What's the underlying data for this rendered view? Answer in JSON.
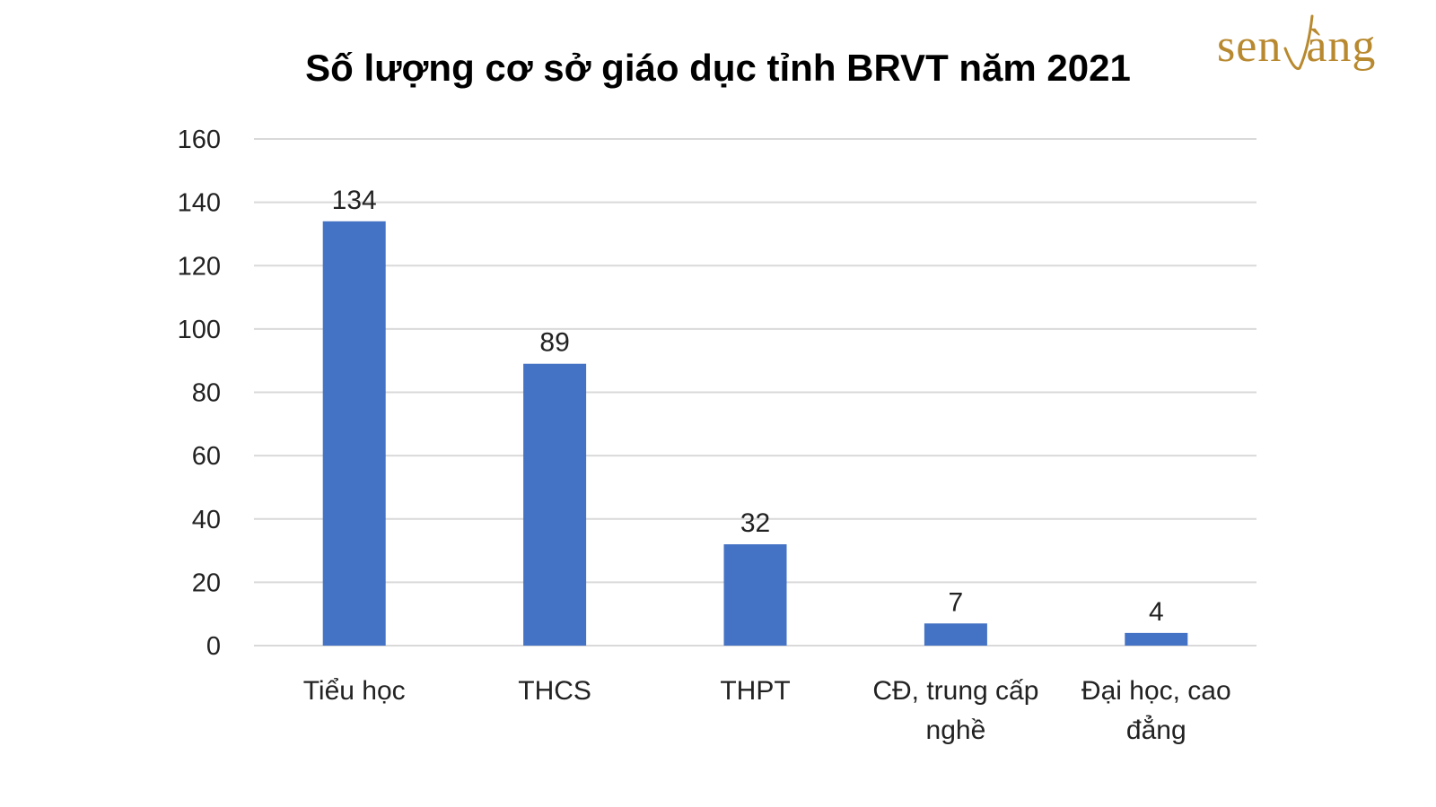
{
  "logo": {
    "text": "senvàng",
    "color": "#b8892f"
  },
  "chart_data": {
    "type": "bar",
    "title": "Số lượng cơ sở giáo dục tỉnh BRVT năm 2021",
    "categories": [
      [
        "Tiểu học"
      ],
      [
        "THCS"
      ],
      [
        "THPT"
      ],
      [
        "CĐ, trung cấp",
        "nghề"
      ],
      [
        "Đại học, cao",
        "đẳng"
      ]
    ],
    "values": [
      134,
      89,
      32,
      7,
      4
    ],
    "ylim": [
      0,
      160
    ],
    "yticks": [
      0,
      20,
      40,
      60,
      80,
      100,
      120,
      140,
      160
    ],
    "grid": true,
    "bar_color": "#4472c4",
    "data_labels": [
      "134",
      "89",
      "32",
      "7",
      "4"
    ]
  }
}
